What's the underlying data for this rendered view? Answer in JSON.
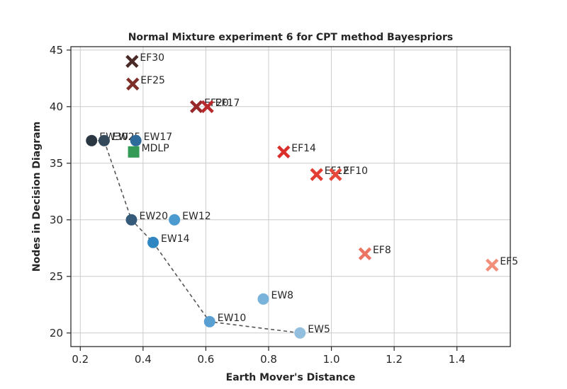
{
  "chart_data": {
    "type": "scatter",
    "title": "Normal Mixture experiment 6 for CPT method Bayespriors",
    "xlabel": "Earth Mover's Distance",
    "ylabel": "Nodes in Decision Diagram",
    "xlim": [
      0.17,
      1.57
    ],
    "ylim": [
      18.8,
      45.3
    ],
    "xticks": [
      "0.2",
      "0.4",
      "0.6",
      "0.8",
      "1.0",
      "1.2",
      "1.4"
    ],
    "xtick_values": [
      0.2,
      0.4,
      0.6,
      0.8,
      1.0,
      1.2,
      1.4
    ],
    "yticks": [
      "20",
      "25",
      "30",
      "35",
      "40",
      "45"
    ],
    "ytick_values": [
      20,
      25,
      30,
      35,
      40,
      45
    ],
    "grid": true,
    "points": [
      {
        "label": "EF30",
        "x": 0.365,
        "y": 44,
        "marker": "x",
        "color": "#4a2a26"
      },
      {
        "label": "EF25",
        "x": 0.367,
        "y": 42,
        "marker": "x",
        "color": "#7e2f2a"
      },
      {
        "label": "EF20",
        "x": 0.57,
        "y": 40,
        "marker": "x",
        "color": "#98272a"
      },
      {
        "label": "EF17",
        "x": 0.605,
        "y": 40,
        "marker": "x",
        "color": "#b82a2c"
      },
      {
        "label": "EF14",
        "x": 0.848,
        "y": 36,
        "marker": "x",
        "color": "#d92e2a"
      },
      {
        "label": "EF12",
        "x": 0.953,
        "y": 34,
        "marker": "x",
        "color": "#e23c33"
      },
      {
        "label": "EF10",
        "x": 1.013,
        "y": 34,
        "marker": "x",
        "color": "#e6483a"
      },
      {
        "label": "EF8",
        "x": 1.107,
        "y": 27,
        "marker": "x",
        "color": "#ec7462"
      },
      {
        "label": "EF5",
        "x": 1.512,
        "y": 26,
        "marker": "x",
        "color": "#f28f7a"
      },
      {
        "label": "EW30",
        "x": 0.236,
        "y": 37,
        "marker": "o",
        "color": "#2a3642"
      },
      {
        "label": "EW25",
        "x": 0.276,
        "y": 37,
        "marker": "o",
        "color": "#34495a"
      },
      {
        "label": "EW17",
        "x": 0.377,
        "y": 37,
        "marker": "o",
        "color": "#2e6a9a"
      },
      {
        "label": "EW20",
        "x": 0.363,
        "y": 30,
        "marker": "o",
        "color": "#355a7a"
      },
      {
        "label": "EW14",
        "x": 0.432,
        "y": 28,
        "marker": "o",
        "color": "#2f86c0"
      },
      {
        "label": "EW12",
        "x": 0.5,
        "y": 30,
        "marker": "o",
        "color": "#4b9ad0"
      },
      {
        "label": "EW10",
        "x": 0.612,
        "y": 21,
        "marker": "o",
        "color": "#5a9fd2"
      },
      {
        "label": "EW8",
        "x": 0.783,
        "y": 23,
        "marker": "o",
        "color": "#79b3dc"
      },
      {
        "label": "EW5",
        "x": 0.9,
        "y": 20,
        "marker": "o",
        "color": "#93bfdf"
      },
      {
        "label": "MDLP",
        "x": 0.37,
        "y": 36,
        "marker": "s",
        "color": "#339b55"
      }
    ],
    "pareto_front": [
      {
        "x": 0.236,
        "y": 37
      },
      {
        "x": 0.276,
        "y": 37
      },
      {
        "x": 0.363,
        "y": 30
      },
      {
        "x": 0.432,
        "y": 28
      },
      {
        "x": 0.612,
        "y": 21
      },
      {
        "x": 0.9,
        "y": 20
      }
    ]
  }
}
